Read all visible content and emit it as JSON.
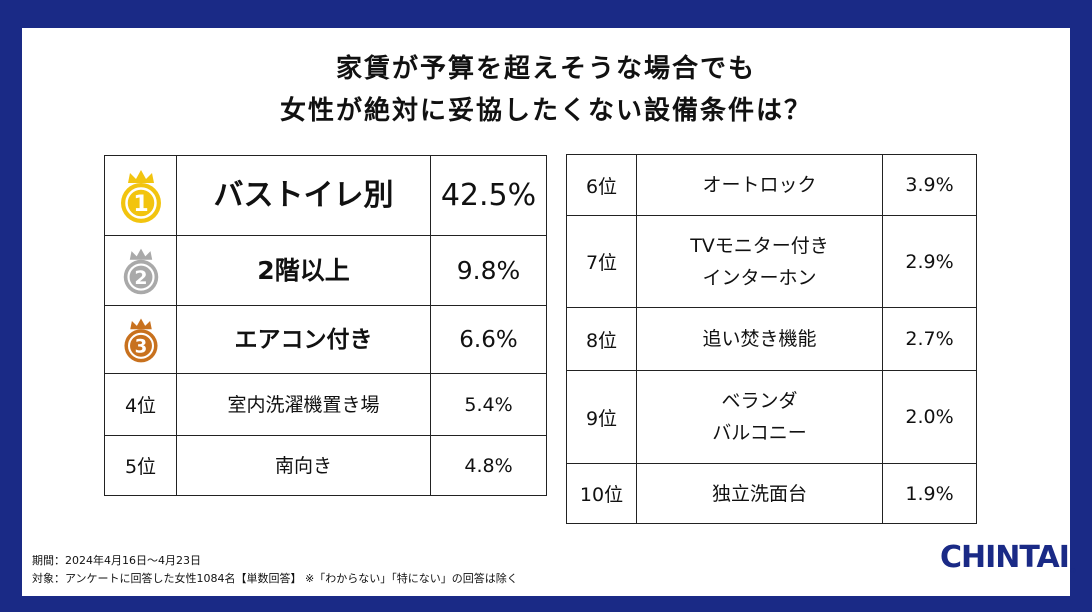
{
  "title": {
    "line1": "家賃が予算を超えそうな場合でも",
    "line2": "女性が絶対に妥協したくない設備条件は？"
  },
  "left_rows": [
    {
      "rank": "",
      "name": "バストイレ別",
      "pct": "42.5%"
    },
    {
      "rank": "",
      "name": "2階以上",
      "pct": "9.8%"
    },
    {
      "rank": "",
      "name": "エアコン付き",
      "pct": "6.6%"
    },
    {
      "rank": "4位",
      "name": "室内洗濯機置き場",
      "pct": "5.4%"
    },
    {
      "rank": "5位",
      "name": "南向き",
      "pct": "4.8%"
    }
  ],
  "right_rows": [
    {
      "rank": "6位",
      "name": "オートロック",
      "pct": "3.9%"
    },
    {
      "rank": "7位",
      "name_line1": "TVモニター付き",
      "name_line2": "インターホン",
      "pct": "2.9%"
    },
    {
      "rank": "8位",
      "name": "追い焚き機能",
      "pct": "2.7%"
    },
    {
      "rank": "9位",
      "name_line1": "ベランダ",
      "name_line2": "バルコニー",
      "pct": "2.0%"
    },
    {
      "rank": "10位",
      "name": "独立洗面台",
      "pct": "1.9%"
    }
  ],
  "medals": {
    "gold": {
      "label": "1",
      "color": "#f2c40f"
    },
    "silver": {
      "label": "2",
      "color": "#a9a9a9"
    },
    "bronze": {
      "label": "3",
      "color": "#c8711e"
    }
  },
  "footer": {
    "period": "期間：2024年4月16日～4月23日",
    "target": "対象：アンケートに回答した女性1084名【単数回答】 ※「わからない」「特にない」の回答は除く"
  },
  "logo": {
    "text": "CHINTAI",
    "mark": "®"
  },
  "colors": {
    "background": "#1a2a86",
    "card": "#ffffff"
  }
}
